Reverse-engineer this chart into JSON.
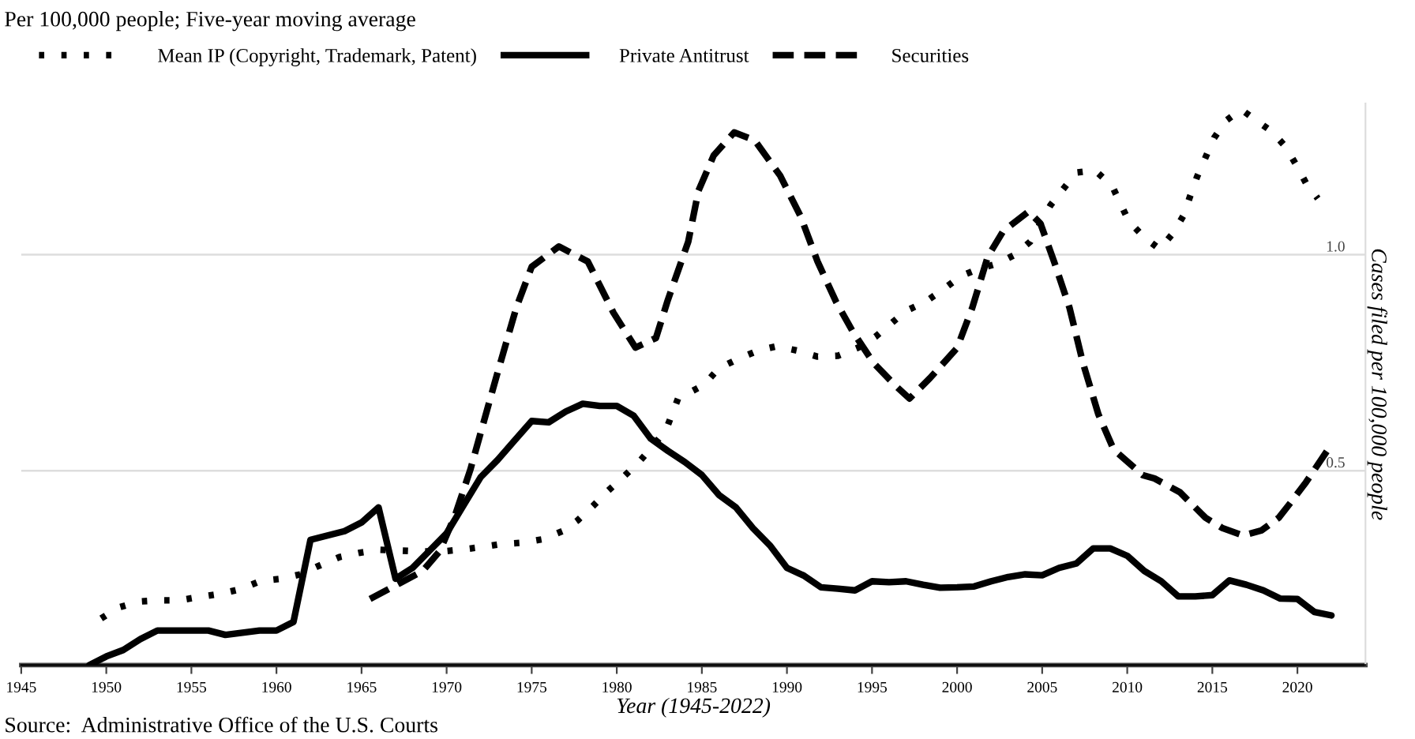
{
  "chart_data": {
    "type": "line",
    "title": "Per 100,000 people; Five-year moving average",
    "xlabel": "Year (1945-2022)",
    "y2label": "Cases filed per 100,000 people",
    "annotations": [
      "Source:  Administrative Office of the U.S. Courts"
    ],
    "xlim": [
      1945,
      2024
    ],
    "xticks": [
      1945,
      1950,
      1955,
      1960,
      1965,
      1970,
      1975,
      1980,
      1985,
      1990,
      1995,
      2000,
      2005,
      2010,
      2015,
      2020
    ],
    "y2lim": [
      0.05,
      1.35
    ],
    "y2ticks": [
      0.5,
      {
        "value": 1.0,
        "label": "1.0"
      }
    ],
    "grid": "y",
    "legend": "top left",
    "series": [
      {
        "name": "Mean IP (Copyright, Trademark, Patent)",
        "color": "#000000",
        "line_style": "dotted",
        "axis": "y2",
        "x": [
          1949.7,
          1950.7,
          1951.9,
          1953.1,
          1954.3,
          1955.5,
          1956.7,
          1957.9,
          1959.1,
          1960.3,
          1961.4,
          1962.5,
          1963.7,
          1964.9,
          1966.1,
          1967.3,
          1968.5,
          1969.7,
          1970.8,
          1972.0,
          1973.2,
          1974.4,
          1975.6,
          1976.8,
          1977.7,
          1978.6,
          1979.5,
          1980.4,
          1981.3,
          1982.1,
          1982.9,
          1983.6,
          1985.1,
          1986.0,
          1987.2,
          1988.3,
          1989.4,
          1990.6,
          1991.8,
          1993.0,
          1994.2,
          1995.2,
          1996.1,
          1997.0,
          1998.1,
          1999.1,
          2000.2,
          2001.2,
          2002.4,
          2003.4,
          2004.3,
          2005.5,
          2006.3,
          2007.0,
          2008.1,
          2009.1,
          2009.6,
          2010.1,
          2011.0,
          2011.9,
          2012.7,
          2013.3,
          2013.7,
          2014.1,
          2014.6,
          2015.1,
          2015.8,
          2016.7,
          2017.6,
          2018.5,
          2019.3,
          2019.9,
          2020.5,
          2021.2
        ],
        "values": [
          0.158,
          0.183,
          0.197,
          0.2,
          0.2,
          0.208,
          0.215,
          0.226,
          0.245,
          0.25,
          0.26,
          0.28,
          0.3,
          0.31,
          0.317,
          0.315,
          0.313,
          0.313,
          0.317,
          0.323,
          0.33,
          0.333,
          0.341,
          0.36,
          0.385,
          0.418,
          0.454,
          0.486,
          0.52,
          0.556,
          0.595,
          0.667,
          0.698,
          0.737,
          0.76,
          0.778,
          0.788,
          0.778,
          0.764,
          0.766,
          0.785,
          0.81,
          0.84,
          0.87,
          0.89,
          0.917,
          0.95,
          0.966,
          0.98,
          1.0,
          1.03,
          1.115,
          1.155,
          1.19,
          1.195,
          1.16,
          1.118,
          1.077,
          1.04,
          1.013,
          1.05,
          1.09,
          1.136,
          1.18,
          1.225,
          1.27,
          1.31,
          1.336,
          1.31,
          1.285,
          1.25,
          1.21,
          1.166,
          1.13
        ]
      },
      {
        "name": "Private Antitrust",
        "color": "#000000",
        "line_style": "solid",
        "axis": "y2",
        "x": [
          1949,
          1950,
          1951,
          1952,
          1953,
          1954,
          1955,
          1956,
          1957,
          1958,
          1959,
          1960,
          1961,
          1962,
          1963,
          1964,
          1965,
          1966,
          1967,
          1968,
          1969,
          1970,
          1971,
          1972,
          1973,
          1974,
          1975,
          1976,
          1977,
          1978,
          1979,
          1980,
          1981,
          1982,
          1983,
          1984,
          1985,
          1986,
          1987,
          1988,
          1989,
          1990,
          1991,
          1992,
          1993,
          1994,
          1995,
          1996,
          1997,
          1998,
          1999,
          2000,
          2001,
          2002,
          2003,
          2004,
          2005,
          2006,
          2007,
          2008,
          2009,
          2010,
          2011,
          2012,
          2013,
          2014,
          2015,
          2016,
          2017,
          2018,
          2019,
          2020,
          2021,
          2022
        ],
        "values": [
          0.05,
          0.07,
          0.085,
          0.11,
          0.13,
          0.13,
          0.13,
          0.13,
          0.12,
          0.125,
          0.13,
          0.13,
          0.15,
          0.34,
          0.35,
          0.36,
          0.38,
          0.415,
          0.25,
          0.275,
          0.315,
          0.355,
          0.42,
          0.485,
          0.525,
          0.57,
          0.615,
          0.612,
          0.637,
          0.655,
          0.65,
          0.65,
          0.627,
          0.574,
          0.546,
          0.52,
          0.49,
          0.444,
          0.415,
          0.367,
          0.327,
          0.275,
          0.257,
          0.23,
          0.227,
          0.223,
          0.244,
          0.242,
          0.244,
          0.236,
          0.229,
          0.23,
          0.232,
          0.244,
          0.254,
          0.26,
          0.258,
          0.275,
          0.285,
          0.32,
          0.32,
          0.303,
          0.268,
          0.244,
          0.209,
          0.209,
          0.212,
          0.246,
          0.236,
          0.223,
          0.204,
          0.203,
          0.173,
          0.165
        ]
      },
      {
        "name": "Securities",
        "color": "#000000",
        "line_style": "dashed",
        "axis": "y2",
        "x": [
          1965.5,
          1968.6,
          1969.6,
          1970.5,
          1971.4,
          1972.9,
          1973.5,
          1974.1,
          1975.0,
          1976.6,
          1978.3,
          1979.8,
          1981.1,
          1982.3,
          1983.0,
          1984.2,
          1984.8,
          1985.7,
          1986.9,
          1988.1,
          1989.6,
          1990.8,
          1991.8,
          1992.9,
          1993.9,
          1995.1,
          1996.4,
          1997.2,
          1998.4,
          2000.0,
          2000.9,
          2001.8,
          2002.7,
          2004.2,
          2004.9,
          2005.7,
          2006.6,
          2007.4,
          2008.3,
          2009.2,
          2010.9,
          2011.6,
          2013.1,
          2014.6,
          2015.6,
          2016.8,
          2017.9,
          2018.9,
          2019.6,
          2020.5,
          2021.9
        ],
        "values": [
          0.203,
          0.268,
          0.314,
          0.397,
          0.503,
          0.714,
          0.796,
          0.878,
          0.972,
          1.019,
          0.984,
          0.866,
          0.785,
          0.807,
          0.895,
          1.03,
          1.148,
          1.23,
          1.283,
          1.265,
          1.183,
          1.089,
          0.984,
          0.89,
          0.82,
          0.749,
          0.696,
          0.667,
          0.714,
          0.784,
          0.878,
          0.995,
          1.054,
          1.1,
          1.072,
          0.984,
          0.878,
          0.749,
          0.631,
          0.549,
          0.49,
          0.482,
          0.45,
          0.391,
          0.367,
          0.35,
          0.362,
          0.391,
          0.426,
          0.473,
          0.555
        ]
      }
    ]
  }
}
